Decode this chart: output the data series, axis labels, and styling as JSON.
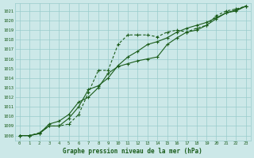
{
  "bg_color": "#cce8e8",
  "grid_color": "#99cccc",
  "line_color": "#1a5c1a",
  "text_color": "#1a5c1a",
  "xlabel": "Graphe pression niveau de la mer (hPa)",
  "ylim": [
    1007.5,
    1021.8
  ],
  "xlim": [
    -0.5,
    23.5
  ],
  "yticks": [
    1008,
    1009,
    1010,
    1011,
    1012,
    1013,
    1014,
    1015,
    1016,
    1017,
    1018,
    1019,
    1020,
    1021
  ],
  "xticks": [
    0,
    1,
    2,
    3,
    4,
    5,
    6,
    7,
    8,
    9,
    10,
    11,
    12,
    13,
    14,
    15,
    16,
    17,
    18,
    19,
    20,
    21,
    22,
    23
  ],
  "series1_x": [
    0,
    1,
    2,
    3,
    4,
    5,
    6,
    7,
    8,
    9,
    10,
    11,
    12,
    13,
    14,
    15,
    16,
    17,
    18,
    19,
    20,
    21,
    22,
    23
  ],
  "series1_y": [
    1008.0,
    1008.0,
    1008.3,
    1009.0,
    1009.0,
    1009.2,
    1010.2,
    1012.5,
    1014.8,
    1014.8,
    1017.5,
    1018.5,
    1018.5,
    1018.5,
    1018.3,
    1018.8,
    1019.0,
    1018.8,
    1019.2,
    1019.5,
    1020.5,
    1021.0,
    1021.2,
    1021.5
  ],
  "series2_x": [
    0,
    1,
    2,
    3,
    4,
    5,
    6,
    7,
    8,
    9,
    10,
    11,
    12,
    13,
    14,
    15,
    16,
    17,
    18,
    19,
    20,
    21,
    22,
    23
  ],
  "series2_y": [
    1008.0,
    1008.0,
    1008.2,
    1009.0,
    1009.0,
    1009.8,
    1011.0,
    1012.8,
    1013.2,
    1014.0,
    1015.3,
    1016.2,
    1016.8,
    1017.5,
    1017.8,
    1018.2,
    1018.8,
    1019.2,
    1019.5,
    1019.8,
    1020.3,
    1020.8,
    1021.1,
    1021.5
  ],
  "series3_x": [
    0,
    1,
    2,
    3,
    4,
    5,
    6,
    7,
    8,
    9,
    10,
    11,
    12,
    13,
    14,
    15,
    16,
    17,
    18,
    19,
    20,
    21,
    22,
    23
  ],
  "series3_y": [
    1008.0,
    1008.0,
    1008.2,
    1009.2,
    1009.5,
    1010.2,
    1011.5,
    1012.0,
    1013.0,
    1014.5,
    1015.2,
    1015.5,
    1015.8,
    1016.0,
    1016.2,
    1017.5,
    1018.2,
    1018.8,
    1019.0,
    1019.5,
    1020.2,
    1020.8,
    1021.0,
    1021.5
  ]
}
